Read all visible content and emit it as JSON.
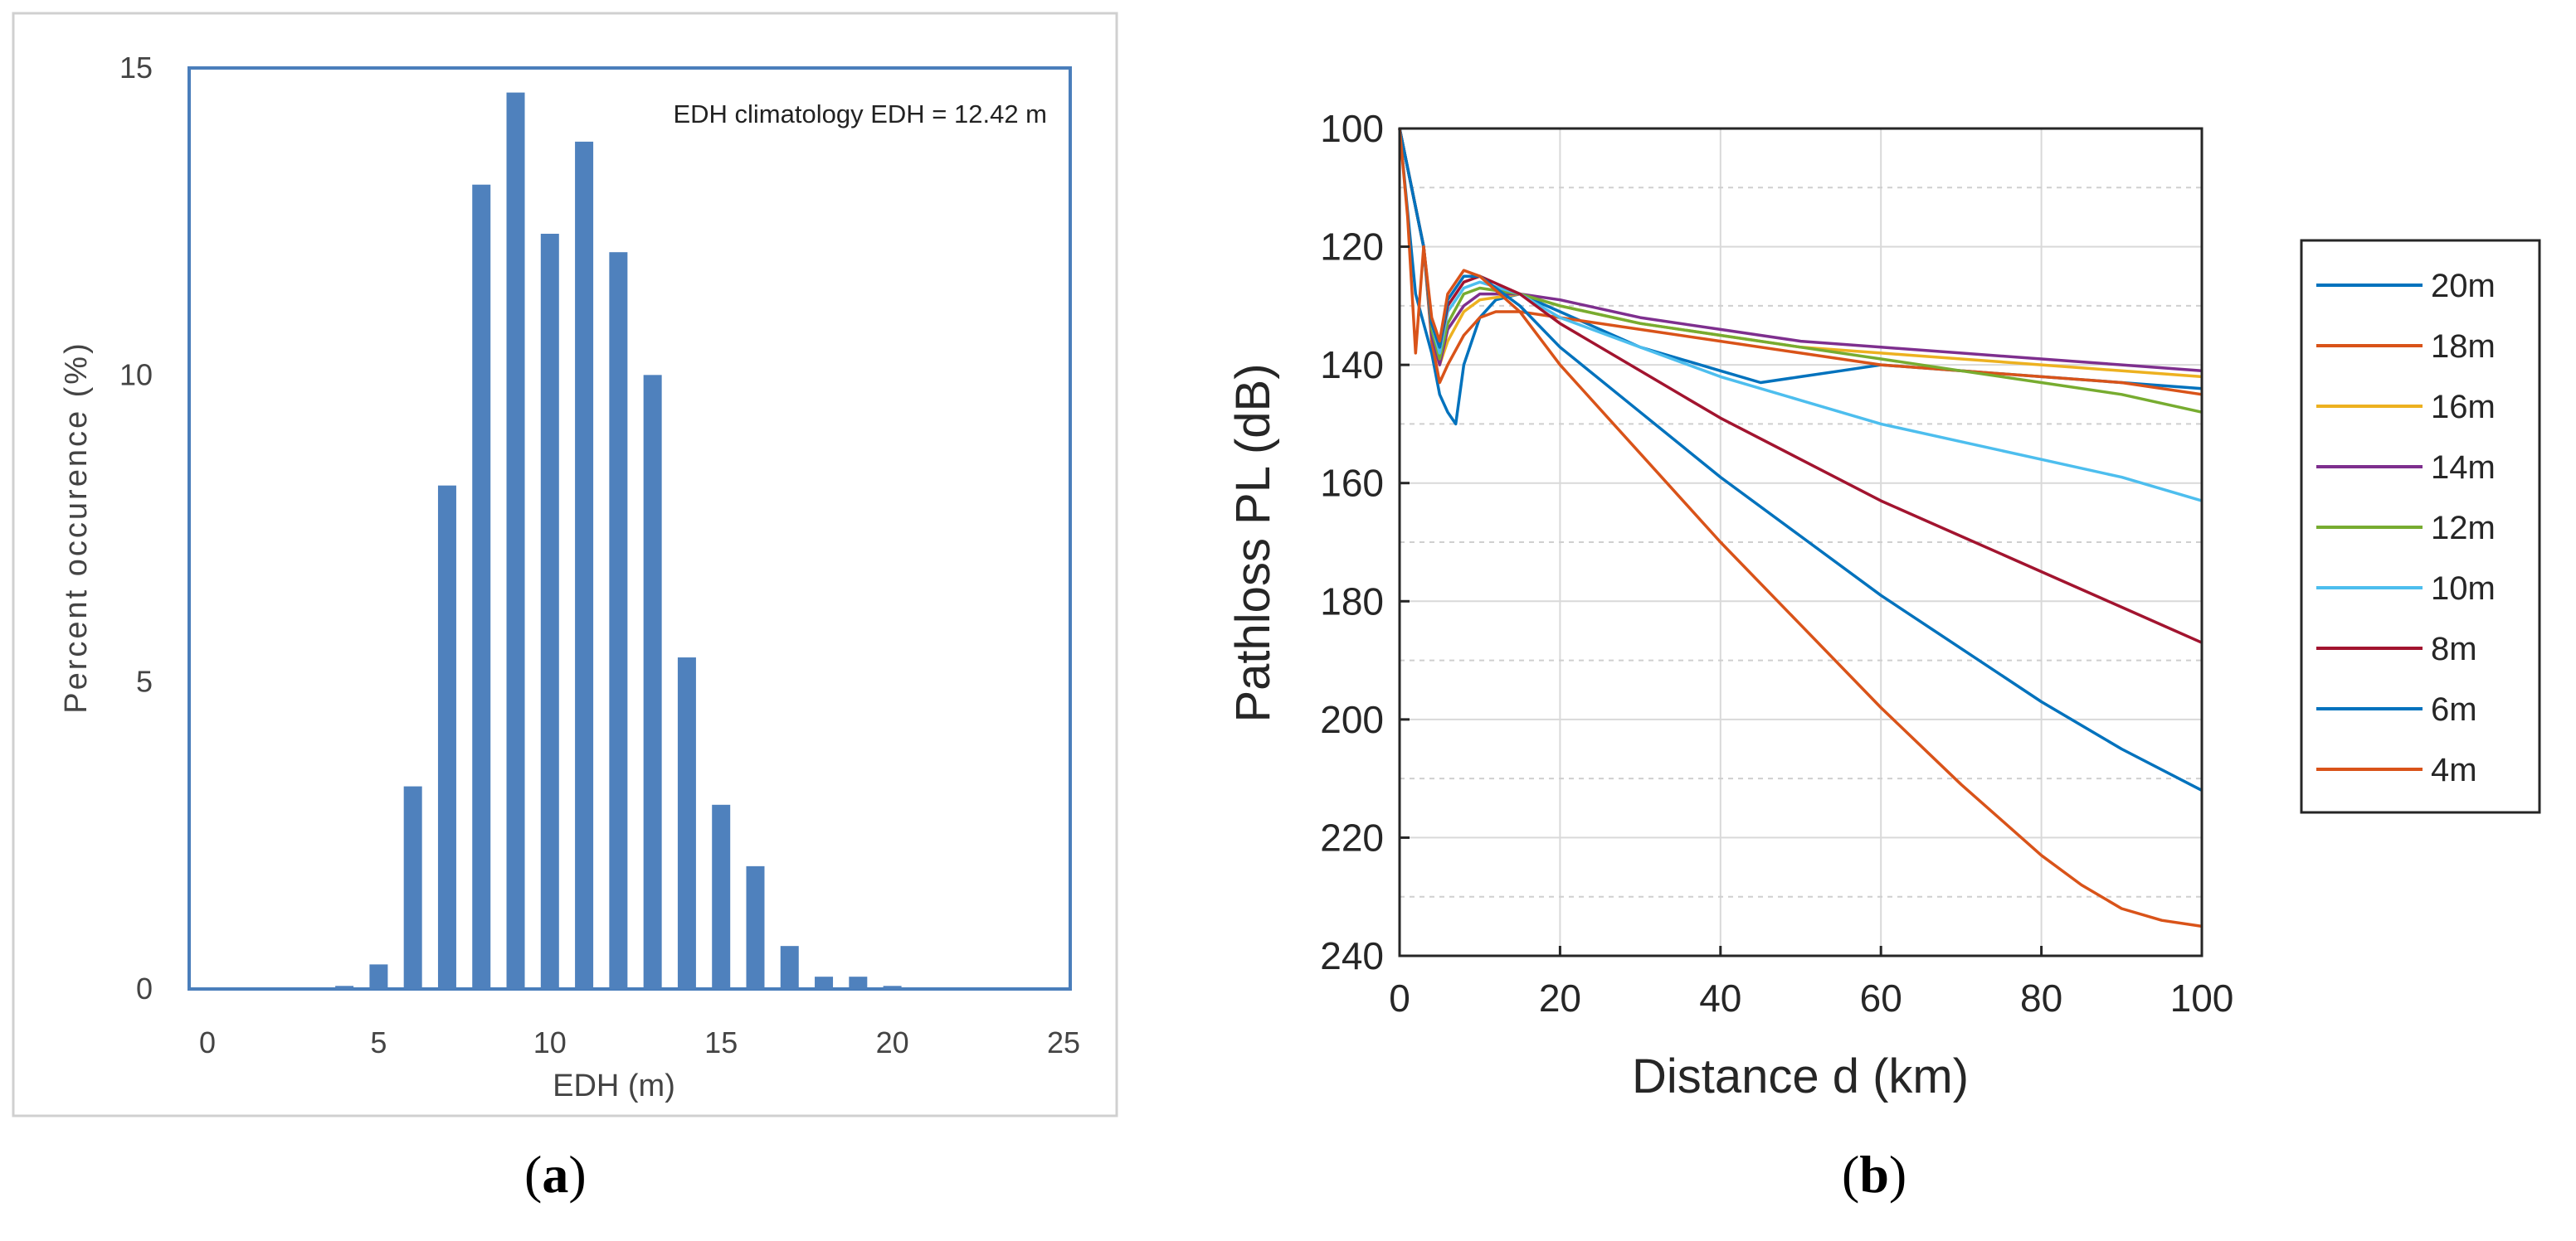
{
  "chart_data": [
    {
      "type": "bar",
      "panel_label": "a",
      "title": "",
      "annotation": "EDH climatology EDH = 12.42 m",
      "xlabel": "EDH (m)",
      "ylabel": "Percent occurence (%)",
      "xlim": [
        0,
        25
      ],
      "ylim": [
        0,
        15
      ],
      "x_ticks": [
        "0",
        "5",
        "10",
        "15",
        "20",
        "25"
      ],
      "y_ticks": [
        "0",
        "5",
        "10",
        "15"
      ],
      "bar_color": "#4f81bd",
      "categories": [
        1,
        2,
        3,
        4,
        5,
        6,
        7,
        8,
        9,
        10,
        11,
        12,
        13,
        14,
        15,
        16,
        17,
        18,
        19,
        20,
        21,
        22,
        23,
        24
      ],
      "values": [
        0,
        0,
        0,
        0.05,
        0.4,
        3.3,
        8.2,
        13.1,
        14.6,
        12.3,
        13.8,
        12.0,
        10.0,
        5.4,
        3.0,
        2.0,
        0.7,
        0.2,
        0.2,
        0.05,
        0,
        0,
        0,
        0
      ],
      "grid": false
    },
    {
      "type": "line",
      "panel_label": "b",
      "xlabel": "Distance d (km)",
      "ylabel": "Pathloss PL (dB)",
      "xlim": [
        0,
        100
      ],
      "ylim": [
        240,
        100
      ],
      "y_reversed": true,
      "x_ticks": [
        "0",
        "20",
        "40",
        "60",
        "80",
        "100"
      ],
      "y_ticks": [
        "100",
        "120",
        "140",
        "160",
        "180",
        "200",
        "220",
        "240"
      ],
      "grid": true,
      "legend_position": "right",
      "series": [
        {
          "name": "20m",
          "color": "#0072bd",
          "x": [
            0,
            2,
            4,
            5,
            6,
            7,
            8,
            10,
            12,
            15,
            20,
            30,
            40,
            45,
            50,
            55,
            60,
            70,
            80,
            90,
            100
          ],
          "y": [
            100,
            128,
            138,
            145,
            148,
            150,
            140,
            132,
            129,
            128,
            131,
            137,
            141,
            143,
            142,
            141,
            140,
            141,
            142,
            143,
            144
          ]
        },
        {
          "name": "18m",
          "color": "#d95319",
          "x": [
            0,
            3,
            4,
            5,
            6,
            8,
            10,
            12,
            15,
            20,
            30,
            40,
            50,
            60,
            70,
            80,
            90,
            100
          ],
          "y": [
            100,
            120,
            136,
            143,
            140,
            135,
            132,
            131,
            131,
            132,
            134,
            136,
            138,
            140,
            141,
            142,
            143,
            145
          ]
        },
        {
          "name": "16m",
          "color": "#edb120",
          "x": [
            0,
            3,
            4,
            5,
            6,
            8,
            10,
            15,
            20,
            30,
            40,
            50,
            60,
            70,
            80,
            90,
            100
          ],
          "y": [
            100,
            120,
            135,
            140,
            136,
            131,
            129,
            128,
            130,
            133,
            135,
            137,
            138,
            139,
            140,
            141,
            142
          ]
        },
        {
          "name": "14m",
          "color": "#7e2f8e",
          "x": [
            0,
            3,
            4,
            5,
            6,
            8,
            10,
            15,
            20,
            30,
            40,
            50,
            60,
            70,
            80,
            90,
            100
          ],
          "y": [
            100,
            120,
            135,
            140,
            134,
            130,
            128,
            128,
            129,
            132,
            134,
            136,
            137,
            138,
            139,
            140,
            141
          ]
        },
        {
          "name": "12m",
          "color": "#77ac30",
          "x": [
            0,
            3,
            4,
            5,
            6,
            8,
            10,
            15,
            20,
            30,
            40,
            50,
            60,
            70,
            80,
            90,
            100
          ],
          "y": [
            100,
            120,
            134,
            139,
            133,
            128,
            127,
            128,
            130,
            133,
            135,
            137,
            139,
            141,
            143,
            145,
            148
          ]
        },
        {
          "name": "10m",
          "color": "#4dbeee",
          "x": [
            0,
            3,
            4,
            5,
            6,
            8,
            10,
            15,
            20,
            30,
            40,
            50,
            60,
            70,
            80,
            90,
            100
          ],
          "y": [
            100,
            120,
            133,
            138,
            131,
            127,
            126,
            128,
            132,
            137,
            142,
            146,
            150,
            153,
            156,
            159,
            163
          ]
        },
        {
          "name": "8m",
          "color": "#a2142f",
          "x": [
            0,
            3,
            4,
            5,
            6,
            8,
            10,
            15,
            20,
            30,
            40,
            50,
            60,
            70,
            80,
            90,
            100
          ],
          "y": [
            100,
            120,
            133,
            137,
            130,
            126,
            125,
            128,
            133,
            141,
            149,
            156,
            163,
            169,
            175,
            181,
            187
          ]
        },
        {
          "name": "6m",
          "color": "#0072bd",
          "x": [
            0,
            3,
            4,
            5,
            6,
            8,
            10,
            15,
            20,
            30,
            40,
            50,
            60,
            70,
            80,
            90,
            100
          ],
          "y": [
            100,
            120,
            133,
            137,
            129,
            125,
            125,
            130,
            137,
            148,
            159,
            169,
            179,
            188,
            197,
            205,
            212
          ]
        },
        {
          "name": "4m",
          "color": "#d95319",
          "x": [
            0,
            1,
            2,
            3,
            4,
            5,
            6,
            8,
            10,
            15,
            20,
            30,
            40,
            50,
            60,
            70,
            80,
            85,
            90,
            95,
            100
          ],
          "y": [
            100,
            115,
            138,
            120,
            132,
            136,
            128,
            124,
            125,
            131,
            140,
            155,
            170,
            184,
            198,
            211,
            223,
            228,
            232,
            234,
            235
          ]
        }
      ]
    }
  ],
  "captions": {
    "a": "a",
    "b": "b"
  }
}
